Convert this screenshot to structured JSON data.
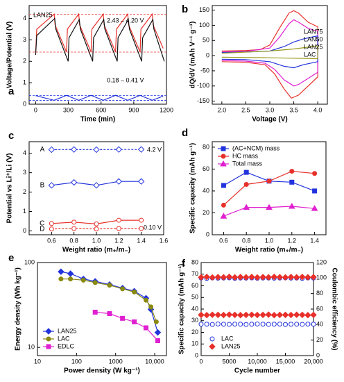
{
  "chart_data": [
    {
      "type": "line",
      "label": "a",
      "xlabel": "Time (min)",
      "ylabel": "Voltage/Potential (V)",
      "xlim": [
        -60,
        1200
      ],
      "xticks": [
        0,
        300,
        600,
        900,
        1200
      ],
      "ylim": [
        0,
        4.6
      ],
      "yticks": [
        0,
        1,
        2,
        3,
        4
      ],
      "annotations": [
        {
          "text": "LAN25",
          "color": "#000"
        },
        {
          "text": "2.43 – 4.20 V",
          "color": "#000"
        },
        {
          "text": "0.18 – 0.41 V",
          "color": "#000"
        }
      ],
      "hlines": [
        {
          "value": 4.2,
          "color": "#e8302a"
        },
        {
          "value": 2.43,
          "color": "#e8302a"
        },
        {
          "value": 0.41,
          "color": "#2233dd"
        },
        {
          "value": 0.18,
          "color": "#2233dd"
        }
      ],
      "series": [
        {
          "color": "#e8302a",
          "x": [
            0,
            10,
            170,
            178,
            283,
            291,
            395,
            403,
            508,
            516,
            620,
            628,
            733,
            741,
            845,
            853,
            958,
            966,
            1070,
            1078,
            1170
          ],
          "values": [
            2.43,
            3.5,
            4.2,
            3.7,
            2.43,
            3.5,
            4.2,
            3.7,
            2.43,
            3.5,
            4.2,
            3.7,
            2.43,
            3.5,
            4.2,
            3.7,
            2.43,
            3.5,
            4.2,
            3.7,
            2.6
          ]
        },
        {
          "color": "#111111",
          "x": [
            0,
            10,
            175,
            185,
            298,
            306,
            400,
            410,
            523,
            531,
            625,
            635,
            748,
            756,
            850,
            860,
            973,
            981,
            1075,
            1085,
            1180
          ],
          "values": [
            2.3,
            3.2,
            4.0,
            3.5,
            2.0,
            3.1,
            3.95,
            3.5,
            2.0,
            3.1,
            3.95,
            3.5,
            2.0,
            3.1,
            3.95,
            3.5,
            2.0,
            3.1,
            3.95,
            3.5,
            2.0
          ]
        },
        {
          "color": "#2233dd",
          "x": [
            0,
            170,
            283,
            395,
            508,
            620,
            733,
            845,
            958,
            1070,
            1170
          ],
          "values": [
            0.4,
            0.18,
            0.41,
            0.18,
            0.41,
            0.18,
            0.41,
            0.18,
            0.41,
            0.18,
            0.38
          ]
        }
      ]
    },
    {
      "type": "line",
      "label": "b",
      "xlabel": "Voltage (V)",
      "ylabel": "dQ/dV (mAh V⁻¹ g⁻¹)",
      "legend": "text-right",
      "xlim": [
        1.8,
        4.2
      ],
      "xticks": [
        {
          "value": 2,
          "label": "2.0"
        },
        2.5,
        {
          "value": 3,
          "label": "3.0"
        },
        3.5,
        {
          "value": 4,
          "label": "4.0"
        }
      ],
      "ylim": [
        -160,
        165
      ],
      "yticks": [
        -150,
        -100,
        -50,
        0,
        50,
        100,
        150
      ],
      "series": [
        {
          "name": "LAN75",
          "color": "#e8302a",
          "x": [
            2.0,
            2.5,
            2.8,
            3.0,
            3.2,
            3.4,
            3.5,
            3.6,
            3.8,
            4.0,
            4.0,
            3.8,
            3.6,
            3.45,
            3.3,
            3.1,
            2.9,
            2.5,
            2.0
          ],
          "values": [
            15,
            17,
            20,
            35,
            90,
            140,
            148,
            140,
            110,
            95,
            -70,
            -100,
            -130,
            -140,
            -110,
            -60,
            -30,
            -22,
            -20
          ]
        },
        {
          "name": "LAN50",
          "color": "#e020d0",
          "x": [
            2.0,
            2.5,
            3.0,
            3.2,
            3.4,
            3.5,
            3.6,
            3.8,
            4.0,
            4.0,
            3.8,
            3.6,
            3.5,
            3.3,
            3.1,
            2.9,
            2.5,
            2.0
          ],
          "values": [
            12,
            14,
            25,
            60,
            105,
            118,
            110,
            90,
            80,
            -55,
            -75,
            -95,
            -100,
            -80,
            -45,
            -25,
            -18,
            -16
          ]
        },
        {
          "name": "LAN25",
          "color": "#2233dd",
          "x": [
            2.0,
            2.5,
            3.0,
            3.3,
            3.5,
            3.7,
            3.9,
            4.0,
            4.0,
            3.7,
            3.5,
            3.3,
            3.0,
            2.5,
            2.0
          ],
          "values": [
            10,
            12,
            15,
            30,
            45,
            55,
            62,
            65,
            -20,
            -30,
            -40,
            -35,
            -20,
            -13,
            -12
          ]
        },
        {
          "name": "LAC",
          "color": "#9a9a20",
          "x": [
            2.0,
            3.0,
            3.5,
            4.0,
            4.0,
            3.0,
            2.0
          ],
          "values": [
            8,
            15,
            22,
            32,
            -10,
            -7,
            -5
          ]
        }
      ]
    },
    {
      "type": "line",
      "label": "c",
      "xlabel": "Weight ratio (m₊/m₋)",
      "ylabel": "Potential vs Li⁺/Li (V)",
      "legend": "inline",
      "xlim": [
        0.4,
        1.6
      ],
      "xticks": [
        0.6,
        0.8,
        {
          "value": 1,
          "label": "1.0"
        },
        1.2,
        1.4,
        1.6
      ],
      "ylim": [
        -0.2,
        4.6
      ],
      "yticks": [
        0,
        1,
        2,
        3,
        4
      ],
      "x": [
        0.6,
        0.8,
        1.0,
        1.2,
        1.4
      ],
      "annotations": [
        {
          "text": "4.2 V",
          "color": "#2233dd"
        },
        {
          "text": "0.10 V",
          "color": "#e8302a"
        }
      ],
      "series": [
        {
          "name": "A",
          "color": "#2233dd",
          "marker": "diamond",
          "fill": "none",
          "dash": true,
          "values": [
            4.19,
            4.2,
            4.19,
            4.2,
            4.2
          ]
        },
        {
          "name": "B",
          "color": "#2233dd",
          "marker": "diamond",
          "fill": "none",
          "values": [
            2.35,
            2.5,
            2.35,
            2.55,
            2.55
          ]
        },
        {
          "name": "C",
          "color": "#e8302a",
          "marker": "circle",
          "fill": "none",
          "values": [
            0.38,
            0.45,
            0.36,
            0.55,
            0.55
          ]
        },
        {
          "name": "D",
          "color": "#e8302a",
          "marker": "circle",
          "fill": "none",
          "dash": true,
          "values": [
            0.1,
            0.12,
            0.1,
            0.12,
            0.12
          ]
        }
      ]
    },
    {
      "type": "line",
      "label": "d",
      "xlabel": "Weight ratio (m₊/m₋)",
      "ylabel": "Specific capacity (mAh g⁻¹)",
      "legend": "upper left",
      "xlim": [
        0.5,
        1.5
      ],
      "xticks": [
        0.6,
        0.8,
        {
          "value": 1,
          "label": "1.0"
        },
        1.2,
        1.4
      ],
      "ylim": [
        0,
        85
      ],
      "yticks": [
        0,
        20,
        40,
        60,
        80
      ],
      "x": [
        0.6,
        0.8,
        1.0,
        1.2,
        1.4
      ],
      "series": [
        {
          "name": "(AC+NCM) mass",
          "color": "#2233dd",
          "marker": "square",
          "values": [
            45,
            57,
            49,
            48,
            40
          ]
        },
        {
          "name": "HC mass",
          "color": "#e8302a",
          "marker": "circle",
          "values": [
            27,
            46,
            49,
            58,
            56
          ]
        },
        {
          "name": "Total mass",
          "color": "#e020d0",
          "marker": "triangle",
          "values": [
            17,
            25,
            25,
            26,
            24
          ]
        }
      ]
    },
    {
      "type": "line",
      "label": "e",
      "xlabel": "Power density (W kg⁻¹)",
      "ylabel": "Energy density (Wh kg⁻¹)",
      "legend": "lower left",
      "xlog": true,
      "ylog": true,
      "xlim": [
        10,
        20000
      ],
      "xticks": [
        10,
        100,
        1000,
        {
          "value": 10000,
          "label": "10,000"
        }
      ],
      "ylim": [
        8,
        100
      ],
      "yticks": [
        10,
        100
      ],
      "series": [
        {
          "name": "LAN25",
          "color": "#2233dd",
          "marker": "diamond",
          "x": [
            40,
            70,
            150,
            300,
            700,
            1500,
            3000,
            6000,
            8000,
            12000
          ],
          "values": [
            78,
            74,
            64,
            60,
            55,
            50,
            46,
            38,
            28,
            15
          ]
        },
        {
          "name": "LAC",
          "color": "#8a8a10",
          "marker": "circle",
          "x": [
            40,
            70,
            150,
            300,
            700,
            1500,
            3000,
            6000,
            8000,
            11000
          ],
          "values": [
            64,
            64,
            62,
            58,
            54,
            49,
            45,
            36,
            30,
            20
          ]
        },
        {
          "name": "EDLC",
          "color": "#e020d0",
          "marker": "square",
          "x": [
            300,
            700,
            1500,
            3000,
            6000,
            12000
          ],
          "values": [
            26,
            25,
            22,
            20,
            17,
            12
          ]
        }
      ]
    },
    {
      "type": "line",
      "label": "f",
      "xlabel": "Cycle number",
      "ylabel": "Specific capacity (mAh g⁻¹)",
      "y2label": "Coulombic efficiency (%)",
      "legend": "lower left",
      "xlim": [
        0,
        20000
      ],
      "xticks": [
        0,
        5000,
        {
          "value": 10000,
          "label": "10,000"
        },
        {
          "value": 15000,
          "label": "15,000"
        },
        {
          "value": 20000,
          "label": "20,000"
        }
      ],
      "ylim": [
        0,
        80
      ],
      "yticks": [
        0,
        10,
        20,
        30,
        40,
        50,
        60,
        70,
        80
      ],
      "y2lim": [
        0,
        120
      ],
      "y2ticks": [
        0,
        20,
        40,
        60,
        80,
        100,
        120
      ],
      "x": [
        0,
        1000,
        2000,
        3000,
        4000,
        5000,
        6000,
        7000,
        8000,
        9000,
        10000,
        11000,
        12000,
        13000,
        14000,
        15000,
        16000,
        17000,
        18000,
        19000,
        20000
      ],
      "series": [
        {
          "name": "LAC",
          "color": "#2233dd",
          "marker": "circle",
          "fill": "none",
          "line": false,
          "values": [
            27,
            27,
            26.8,
            27.2,
            27,
            26.9,
            27.1,
            27,
            26.8,
            27,
            27.2,
            27,
            26.9,
            27,
            27.1,
            26.8,
            27,
            27,
            26.9,
            27.1,
            27
          ]
        },
        {
          "name": "LAN25",
          "color": "#e8302a",
          "marker": "diamond",
          "line": false,
          "values": [
            35,
            34.8,
            35.1,
            35,
            34.9,
            35.2,
            35,
            34.8,
            35,
            35.1,
            34.9,
            35,
            35.2,
            34.8,
            35,
            35,
            34.9,
            35.1,
            35,
            34.8,
            35
          ]
        },
        {
          "color": "#2233dd",
          "marker": "circle",
          "fill": "none",
          "line": false,
          "axis": "y2",
          "values": [
            100,
            99.5,
            100.2,
            99.8,
            100,
            100.3,
            99.6,
            100,
            99.9,
            100.2,
            99.7,
            100,
            100.1,
            99.8,
            100,
            100.3,
            99.9,
            100,
            99.6,
            100.2,
            100
          ]
        },
        {
          "color": "#e8302a",
          "marker": "diamond",
          "line": false,
          "axis": "y2",
          "values": [
            101,
            101.5,
            100.8,
            101.2,
            101,
            101.6,
            100.9,
            101.3,
            101,
            101.4,
            100.8,
            101.2,
            101,
            101.5,
            101.1,
            100.9,
            101.3,
            101,
            101.4,
            101,
            101.2
          ]
        }
      ]
    }
  ]
}
